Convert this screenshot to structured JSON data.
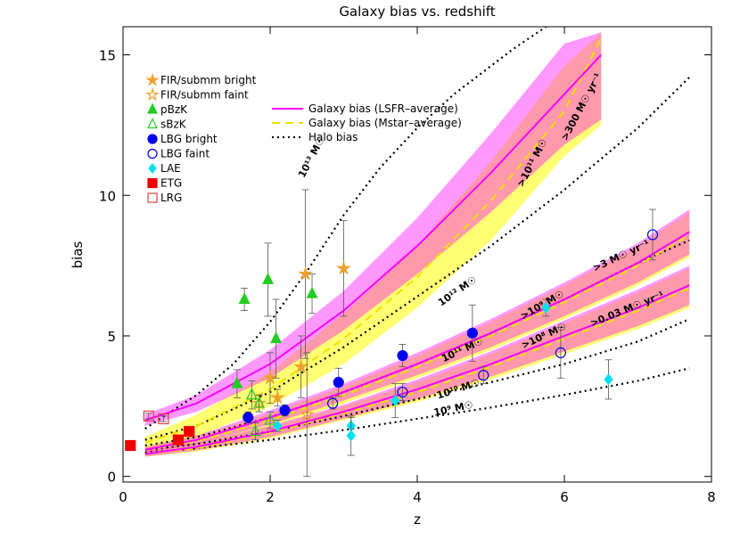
{
  "chart_data": {
    "type": "scatter",
    "title": "Galaxy bias vs. redshift",
    "x_label": "z",
    "y_label": "bias",
    "xlim": [
      0,
      8
    ],
    "ylim": [
      -0.2,
      16
    ],
    "xticks": [
      0,
      2,
      4,
      6,
      8
    ],
    "yticks": [
      0,
      5,
      10,
      15
    ],
    "series": [
      {
        "name": "FIR/submm bright",
        "color": "#f0a030",
        "marker": "star",
        "filled": true,
        "x": [
          2.0,
          2.1,
          2.42,
          2.48,
          3.0
        ],
        "values": [
          3.5,
          2.8,
          3.9,
          7.2,
          7.4
        ],
        "errors": [
          0.9,
          0.3,
          1.1,
          3.0,
          1.7
        ]
      },
      {
        "name": "FIR/submm faint",
        "color": "#f0a030",
        "marker": "star",
        "filled": false,
        "x": [
          1.85,
          2.5
        ],
        "values": [
          2.6,
          2.2
        ],
        "errors": [
          0.3,
          2.2
        ]
      },
      {
        "name": "pBzK",
        "color": "#22cc22",
        "marker": "triangle",
        "filled": true,
        "x": [
          1.55,
          1.65,
          1.97,
          2.08,
          2.57
        ],
        "values": [
          3.3,
          6.3,
          7.0,
          4.9,
          6.5
        ],
        "errors": [
          0.5,
          0.4,
          1.3,
          1.4,
          0.7
        ]
      },
      {
        "name": "sBzK",
        "color": "#22cc22",
        "marker": "triangle",
        "filled": false,
        "x": [
          1.75,
          1.8,
          1.85,
          2.0
        ],
        "values": [
          2.9,
          1.6,
          2.6,
          2.0
        ],
        "errors": [
          0.5,
          0.3,
          0.3,
          0.3
        ]
      },
      {
        "name": "LBG bright",
        "color": "#0000ee",
        "marker": "circle",
        "filled": true,
        "x": [
          1.7,
          2.2,
          2.93,
          3.8,
          4.75
        ],
        "values": [
          2.1,
          2.35,
          3.35,
          4.3,
          5.1
        ],
        "errors": [
          0.2,
          0.2,
          0.5,
          0.4,
          1.0
        ]
      },
      {
        "name": "LBG faint",
        "color": "#0000ee",
        "marker": "circle",
        "filled": false,
        "x": [
          2.85,
          3.8,
          4.9,
          5.95,
          7.2
        ],
        "values": [
          2.6,
          3.0,
          3.6,
          4.4,
          8.6
        ],
        "errors": [
          0.2,
          0.3,
          0.3,
          0.9,
          0.9
        ]
      },
      {
        "name": "LAE",
        "color": "#00e0ee",
        "marker": "diamond",
        "filled": true,
        "x": [
          2.1,
          3.1,
          3.1,
          3.7,
          5.75,
          6.6
        ],
        "values": [
          1.8,
          1.8,
          1.45,
          2.7,
          6.0,
          3.45
        ],
        "errors": [
          0.2,
          0.3,
          0.7,
          0.6,
          0.3,
          0.7
        ]
      },
      {
        "name": "ETG",
        "color": "#ee0000",
        "marker": "square",
        "filled": true,
        "x": [
          0.1,
          0.75,
          0.9
        ],
        "values": [
          1.1,
          1.3,
          1.6
        ],
        "errors": [
          0.05,
          0.1,
          0.1
        ]
      },
      {
        "name": "LRG",
        "color": "#dd4444",
        "marker": "square",
        "filled": false,
        "x": [
          0.35,
          0.55
        ],
        "values": [
          2.15,
          2.05
        ],
        "errors": [
          0.1,
          0.1
        ]
      }
    ],
    "curves": [
      {
        "name": "Galaxy bias (LSFR–average)",
        "color": "#ff00ff",
        "style": "solid",
        "lines": [
          {
            "x": [
              0.3,
              1,
              2,
              3,
              4,
              5,
              6,
              6.5
            ],
            "values": [
              2.0,
              2.6,
              4.0,
              5.9,
              8.2,
              10.8,
              13.6,
              15.0
            ],
            "lower": [
              1.8,
              2.3,
              3.5,
              5.2,
              7.2,
              9.4,
              11.8,
              12.7
            ],
            "upper": [
              2.2,
              2.9,
              4.5,
              6.6,
              9.2,
              12.2,
              15.4,
              15.8
            ]
          },
          {
            "x": [
              0.3,
              1,
              2,
              3,
              4,
              5,
              6,
              7,
              7.7
            ],
            "values": [
              0.95,
              1.3,
              2.1,
              3.0,
              4.0,
              5.1,
              6.3,
              7.6,
              8.7
            ],
            "lower": [
              0.85,
              1.15,
              1.85,
              2.7,
              3.6,
              4.6,
              5.7,
              6.9,
              7.9
            ],
            "upper": [
              1.05,
              1.45,
              2.35,
              3.3,
              4.4,
              5.6,
              6.9,
              8.3,
              9.5
            ]
          },
          {
            "x": [
              0.3,
              1,
              2,
              3,
              4,
              5,
              6,
              7,
              7.7
            ],
            "values": [
              0.8,
              1.05,
              1.6,
              2.3,
              3.1,
              4.0,
              5.0,
              6.0,
              6.8
            ],
            "lower": [
              0.7,
              0.92,
              1.4,
              2.05,
              2.75,
              3.55,
              4.45,
              5.35,
              6.1
            ],
            "upper": [
              0.9,
              1.18,
              1.8,
              2.55,
              3.45,
              4.45,
              5.55,
              6.65,
              7.5
            ]
          }
        ]
      },
      {
        "name": "Galaxy bias (Mstar–average)",
        "color": "#ffff00",
        "style": "dashed",
        "lines": [
          {
            "x": [
              0.3,
              1,
              2,
              3,
              4,
              5,
              6,
              6.5
            ],
            "values": [
              1.2,
              1.8,
              3.1,
              4.9,
              7.1,
              9.8,
              13.0,
              15.6
            ],
            "lower": [
              1.0,
              1.4,
              2.5,
              4.0,
              6.0,
              8.4,
              11.4,
              12.5
            ],
            "upper": [
              1.4,
              2.2,
              3.7,
              5.8,
              8.2,
              11.2,
              14.6,
              15.8
            ]
          },
          {
            "x": [
              0.3,
              1,
              2,
              3,
              4,
              5,
              6,
              7,
              7.7
            ],
            "values": [
              0.95,
              1.25,
              2.0,
              2.9,
              3.9,
              5.0,
              6.2,
              7.5,
              8.6
            ],
            "lower": [
              0.85,
              1.1,
              1.75,
              2.6,
              3.5,
              4.5,
              5.6,
              6.8,
              7.8
            ],
            "upper": [
              1.05,
              1.4,
              2.25,
              3.2,
              4.3,
              5.5,
              6.8,
              8.2,
              9.4
            ]
          },
          {
            "x": [
              0.3,
              1,
              2,
              3,
              4,
              5,
              6,
              7,
              7.7
            ],
            "values": [
              0.8,
              1.0,
              1.55,
              2.25,
              3.0,
              3.9,
              4.9,
              5.9,
              6.7
            ],
            "lower": [
              0.7,
              0.88,
              1.35,
              2.0,
              2.65,
              3.45,
              4.35,
              5.25,
              6.0
            ],
            "upper": [
              0.9,
              1.12,
              1.75,
              2.5,
              3.35,
              4.35,
              5.45,
              6.55,
              7.4
            ]
          }
        ]
      },
      {
        "name": "Halo bias",
        "color": "#000000",
        "style": "dotted",
        "lines": [
          {
            "x": [
              0.3,
              1,
              1.5,
              2,
              2.5,
              3,
              3.5,
              4,
              4.5,
              5,
              5.3,
              5.75
            ],
            "values": [
              1.7,
              2.9,
              4.0,
              5.5,
              7.3,
              9.3,
              11.0,
              12.4,
              13.6,
              14.6,
              15.2,
              16.0
            ]
          },
          {
            "x": [
              0.3,
              1,
              2,
              3,
              4,
              5,
              6,
              7,
              7.7
            ],
            "values": [
              1.3,
              1.8,
              3.0,
              4.6,
              6.4,
              8.2,
              10.2,
              12.4,
              14.2
            ]
          },
          {
            "x": [
              0.3,
              1,
              2,
              3,
              4,
              5,
              6,
              7,
              7.7
            ],
            "values": [
              1.1,
              1.4,
              2.1,
              3.0,
              4.0,
              5.1,
              6.3,
              7.6,
              8.4
            ]
          },
          {
            "x": [
              0.3,
              1,
              2,
              3,
              4,
              5,
              6,
              7,
              7.7
            ],
            "values": [
              0.95,
              1.15,
              1.6,
              2.15,
              2.75,
              3.35,
              4.0,
              4.8,
              5.6
            ]
          },
          {
            "x": [
              0.3,
              1,
              2,
              3,
              4,
              5,
              6,
              7,
              7.7
            ],
            "values": [
              0.85,
              1.0,
              1.3,
              1.65,
              2.05,
              2.45,
              2.9,
              3.4,
              3.85
            ]
          }
        ]
      }
    ],
    "annotations": [
      "10¹³ M☉",
      "10¹² M☉",
      "10¹¹ M☉",
      "10¹⁰ M☉",
      "10⁹ M☉",
      ">10¹¹ M☉",
      ">300 M☉ yr⁻¹",
      ">10⁹ M☉",
      ">3 M☉ yr⁻¹",
      ">10⁸ M☉",
      ">0.03 M☉ yr⁻¹"
    ]
  }
}
